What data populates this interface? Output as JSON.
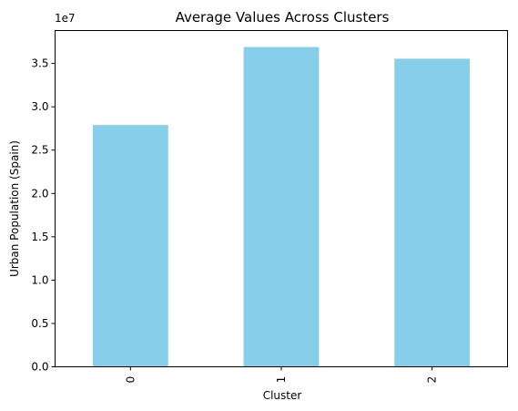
{
  "chart_data": {
    "type": "bar",
    "title": "Average Values Across Clusters",
    "xlabel": "Cluster",
    "ylabel": "Urban Population (Spain)",
    "categories": [
      "0",
      "1",
      "2"
    ],
    "values": [
      27900000,
      36900000,
      35550000
    ],
    "y_offset_label": "1e7",
    "y_scale": 10000000,
    "ylim": [
      0,
      38800000
    ],
    "yticks": [
      0,
      5000000,
      10000000,
      15000000,
      20000000,
      25000000,
      30000000,
      35000000
    ],
    "ytick_labels": [
      "0.0",
      "0.5",
      "1.0",
      "1.5",
      "2.0",
      "2.5",
      "3.0",
      "3.5"
    ],
    "bar_color": "#87CEEB",
    "grid": false,
    "legend": "none"
  }
}
